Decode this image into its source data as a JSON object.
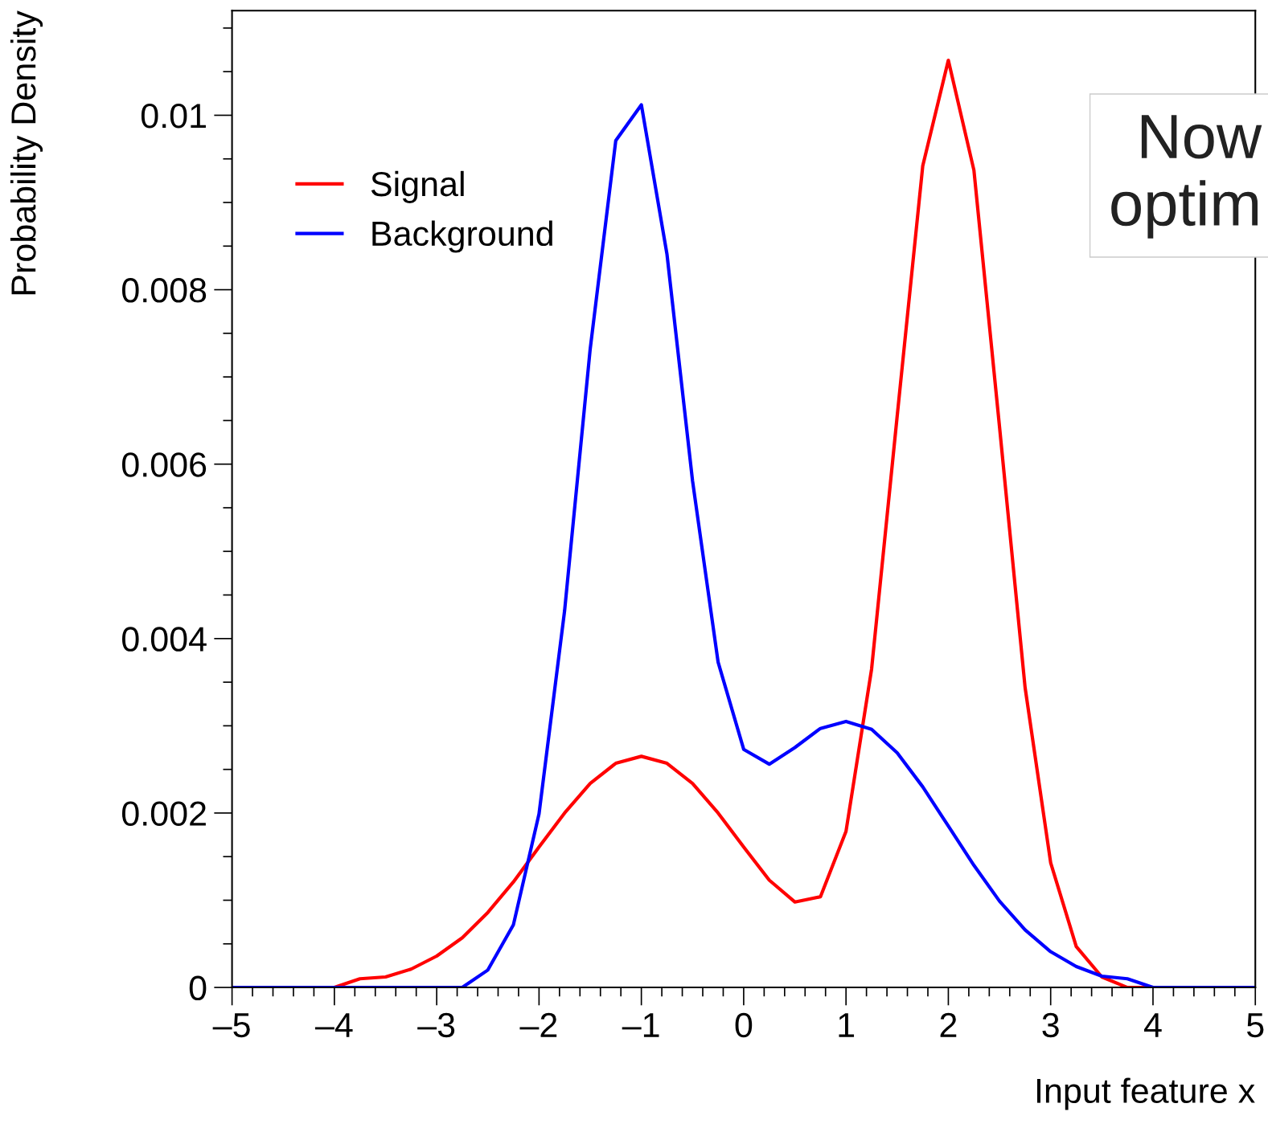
{
  "chart_data": {
    "type": "line",
    "xlabel": "Input feature x",
    "ylabel": "Probability Density",
    "x": [
      -5,
      -4.75,
      -4.5,
      -4.25,
      -4,
      -3.75,
      -3.5,
      -3.25,
      -3,
      -2.75,
      -2.5,
      -2.25,
      -2,
      -1.75,
      -1.5,
      -1.25,
      -1,
      -0.75,
      -0.5,
      -0.25,
      0,
      0.25,
      0.5,
      0.75,
      1,
      1.25,
      1.5,
      1.75,
      2,
      2.25,
      2.5,
      2.75,
      3,
      3.25,
      3.5,
      3.75,
      4,
      4.25,
      4.5,
      4.75,
      5
    ],
    "series": [
      {
        "name": "Signal",
        "color": "#ff0000",
        "values": [
          null,
          null,
          null,
          0,
          0,
          0.0001,
          0.00012,
          0.00021,
          0.00036,
          0.00057,
          0.00086,
          0.00121,
          0.00161,
          0.002,
          0.00234,
          0.00257,
          0.00265,
          0.00257,
          0.00234,
          0.002,
          0.00161,
          0.00123,
          0.00098,
          0.00104,
          0.00179,
          0.00365,
          0.00655,
          0.00942,
          0.01063,
          0.00937,
          0.00643,
          0.00344,
          0.00143,
          0.00047,
          0.00012,
          0,
          0,
          0,
          null,
          null,
          null
        ]
      },
      {
        "name": "Background",
        "color": "#0000ff",
        "values": [
          0,
          0,
          0,
          0,
          0,
          0,
          0,
          0,
          0,
          0,
          0.0002,
          0.00072,
          0.00199,
          0.00432,
          0.00732,
          0.00971,
          0.01012,
          0.00841,
          0.00581,
          0.00373,
          0.00273,
          0.00256,
          0.00275,
          0.00297,
          0.00305,
          0.00296,
          0.00269,
          0.0023,
          0.00185,
          0.0014,
          0.00099,
          0.00066,
          0.00041,
          0.00024,
          0.00013,
          0.0001,
          0,
          0,
          0,
          0,
          0
        ]
      }
    ],
    "xlim": [
      -5,
      5
    ],
    "ylim": [
      0,
      0.0112
    ],
    "xticks": [
      {
        "value": -5,
        "label": "–5"
      },
      {
        "value": -4,
        "label": "–4"
      },
      {
        "value": -3,
        "label": "–3"
      },
      {
        "value": -2,
        "label": "–2"
      },
      {
        "value": -1,
        "label": "–1"
      },
      0,
      1,
      2,
      3,
      4,
      5
    ],
    "yticks": [
      0,
      0.002,
      0.004,
      0.006,
      0.008,
      0.01
    ],
    "legend": "top left",
    "grid": false,
    "annotations": [
      "Now\noptim"
    ]
  }
}
